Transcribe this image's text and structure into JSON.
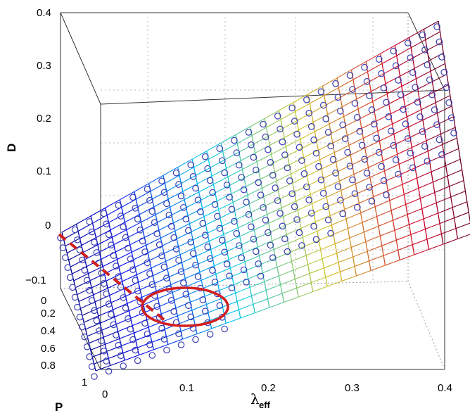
{
  "chart_data": {
    "type": "surface3d",
    "z_axis": {
      "label": "D",
      "ticks": [
        "0.4",
        "0.3",
        "0.2",
        "0.1",
        "0",
        "−0.1"
      ],
      "range": [
        -0.1,
        0.4
      ]
    },
    "y_axis": {
      "label": "P",
      "ticks": [
        "0",
        "0.2",
        "0.4",
        "0.6",
        "0.8",
        "1"
      ],
      "range": [
        0,
        1
      ]
    },
    "x_axis": {
      "label_symbol": "λ",
      "label_subscript": "eff",
      "ticks": [
        "0",
        "0.1",
        "0.2",
        "0.3",
        "0.4"
      ],
      "range": [
        0,
        0.4
      ]
    },
    "grid": true,
    "colormap": "jet",
    "surface": {
      "description": "mesh surface of D over lambda_eff and P; D increases roughly linearly with lambda_eff and decreases with P",
      "lambda_range": [
        0,
        0.4
      ],
      "P_range": [
        0,
        1
      ],
      "corner_values": {
        "lambda0_P0": 0.0,
        "lambda0_P1": -0.1,
        "lambda04_P0": 0.4,
        "lambda04_P1": 0.25
      }
    },
    "markers": {
      "style": "open-circle",
      "color": "#3a3fb5",
      "description": "simulated points overlaid on the surface mesh lines"
    },
    "annotations": [
      {
        "type": "dashed-line",
        "color": "#d21f1f",
        "description": "boundary from origin toward the lower-left corner of the region"
      },
      {
        "type": "ellipse",
        "color": "#d21f1f",
        "description": "highlights a cluster of points near lambda_eff 0.1, P 1"
      }
    ]
  }
}
